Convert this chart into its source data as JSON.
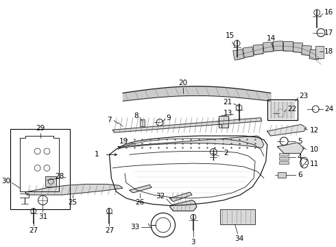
{
  "bg_color": "#ffffff",
  "fig_width": 4.9,
  "fig_height": 3.6,
  "dpi": 100,
  "line_color": "#1a1a1a",
  "fill_color": "#e8e8e8",
  "hatch_color": "#555555"
}
